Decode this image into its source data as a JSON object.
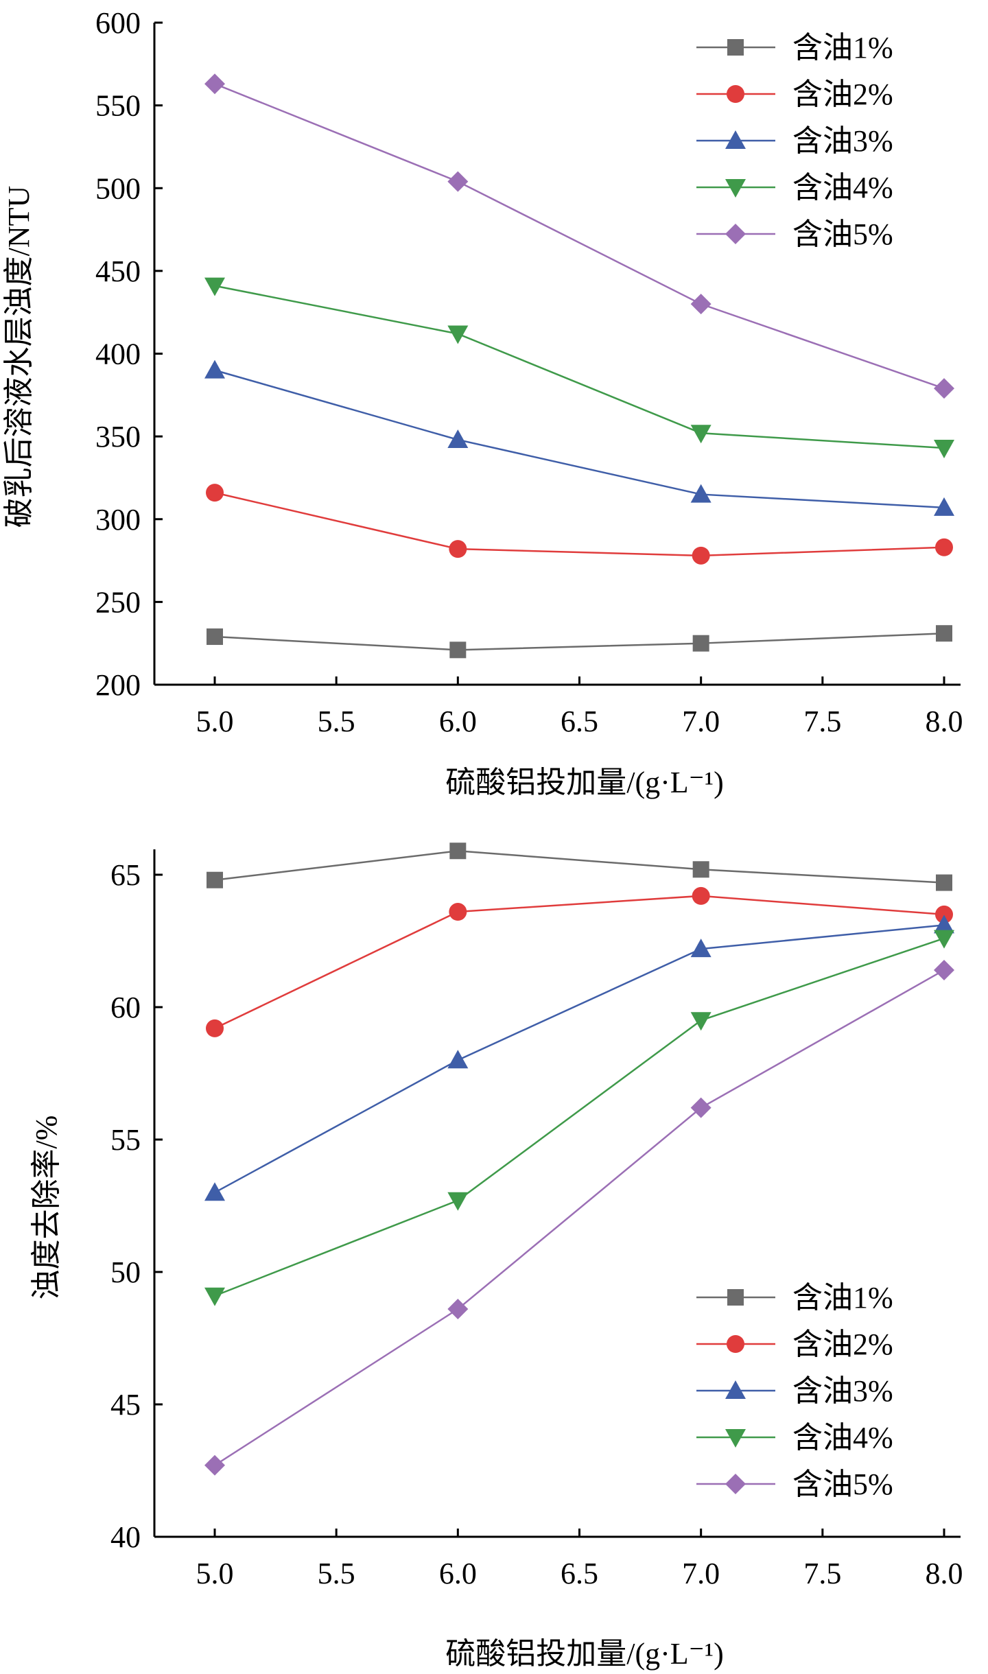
{
  "chart_data": [
    {
      "type": "line",
      "xlabel": "硫酸铝投加量/(g·L⁻¹)",
      "ylabel": "破乳后溶液水层浊度/NTU",
      "xlim": [
        5.0,
        8.0
      ],
      "ylim": [
        200,
        600
      ],
      "x_ticks": [
        "5.0",
        "5.5",
        "6.0",
        "6.5",
        "7.0",
        "7.5",
        "8.0"
      ],
      "y_ticks": [
        "200",
        "250",
        "300",
        "350",
        "400",
        "450",
        "500",
        "550",
        "600"
      ],
      "legend_position": "top-right",
      "x": [
        5.0,
        6.0,
        7.0,
        8.0
      ],
      "series": [
        {
          "name": "含油1%",
          "color": "#6b6b6b",
          "marker": "square",
          "values": [
            229,
            221,
            225,
            231
          ]
        },
        {
          "name": "含油2%",
          "color": "#e03c3c",
          "marker": "circle",
          "values": [
            316,
            282,
            278,
            283
          ]
        },
        {
          "name": "含油3%",
          "color": "#3f5ea8",
          "marker": "triangle-up",
          "values": [
            390,
            348,
            315,
            307
          ]
        },
        {
          "name": "含油4%",
          "color": "#3f9a4a",
          "marker": "triangle-down",
          "values": [
            441,
            412,
            352,
            343
          ]
        },
        {
          "name": "含油5%",
          "color": "#9b6fb5",
          "marker": "diamond",
          "values": [
            563,
            504,
            430,
            379
          ]
        }
      ]
    },
    {
      "type": "line",
      "xlabel": "硫酸铝投加量/(g·L⁻¹)",
      "ylabel": "浊度去除率/%",
      "xlim": [
        5.0,
        8.0
      ],
      "ylim": [
        40,
        67
      ],
      "x_ticks": [
        "5.0",
        "5.5",
        "6.0",
        "6.5",
        "7.0",
        "7.5",
        "8.0"
      ],
      "y_ticks": [
        "40",
        "45",
        "50",
        "55",
        "60",
        "65"
      ],
      "legend_position": "bottom-right",
      "x": [
        5.0,
        6.0,
        7.0,
        8.0
      ],
      "series": [
        {
          "name": "含油1%",
          "color": "#6b6b6b",
          "marker": "square",
          "values": [
            64.8,
            65.9,
            65.2,
            64.7
          ]
        },
        {
          "name": "含油2%",
          "color": "#e03c3c",
          "marker": "circle",
          "values": [
            59.2,
            63.6,
            64.2,
            63.5
          ]
        },
        {
          "name": "含油3%",
          "color": "#3f5ea8",
          "marker": "triangle-up",
          "values": [
            53.0,
            58.0,
            62.2,
            63.1
          ]
        },
        {
          "name": "含油4%",
          "color": "#3f9a4a",
          "marker": "triangle-down",
          "values": [
            49.1,
            52.7,
            59.5,
            62.6
          ]
        },
        {
          "name": "含油5%",
          "color": "#9b6fb5",
          "marker": "diamond",
          "values": [
            42.7,
            48.6,
            56.2,
            61.4
          ]
        }
      ]
    }
  ]
}
